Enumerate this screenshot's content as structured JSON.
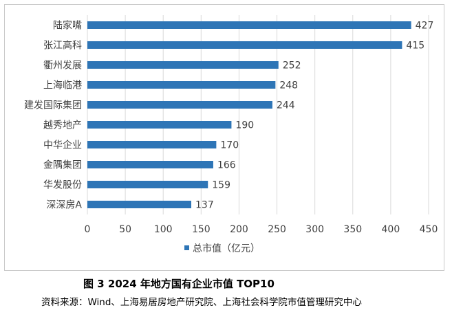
{
  "chart_data": {
    "type": "bar",
    "orientation": "horizontal",
    "categories": [
      "陆家嘴",
      "张江高科",
      "衢州发展",
      "上海临港",
      "建发国际集团",
      "越秀地产",
      "中华企业",
      "金隅集团",
      "华发股份",
      "深深房A"
    ],
    "series": [
      {
        "name": "总市值（亿元）",
        "values": [
          427,
          415,
          252,
          248,
          244,
          190,
          170,
          166,
          159,
          137
        ]
      }
    ],
    "xticks": [
      "0",
      "50",
      "100",
      "150",
      "200",
      "250",
      "300",
      "350",
      "400",
      "450"
    ],
    "xlim": [
      0,
      450
    ],
    "grid": true,
    "legend": "bottom",
    "color": "#2e75b6"
  },
  "caption": "图 3   2024 年地方国有企业市值 TOP10",
  "source": "资料来源：Wind、上海易居房地产研究院、上海社会科学院市值管理研究中心"
}
